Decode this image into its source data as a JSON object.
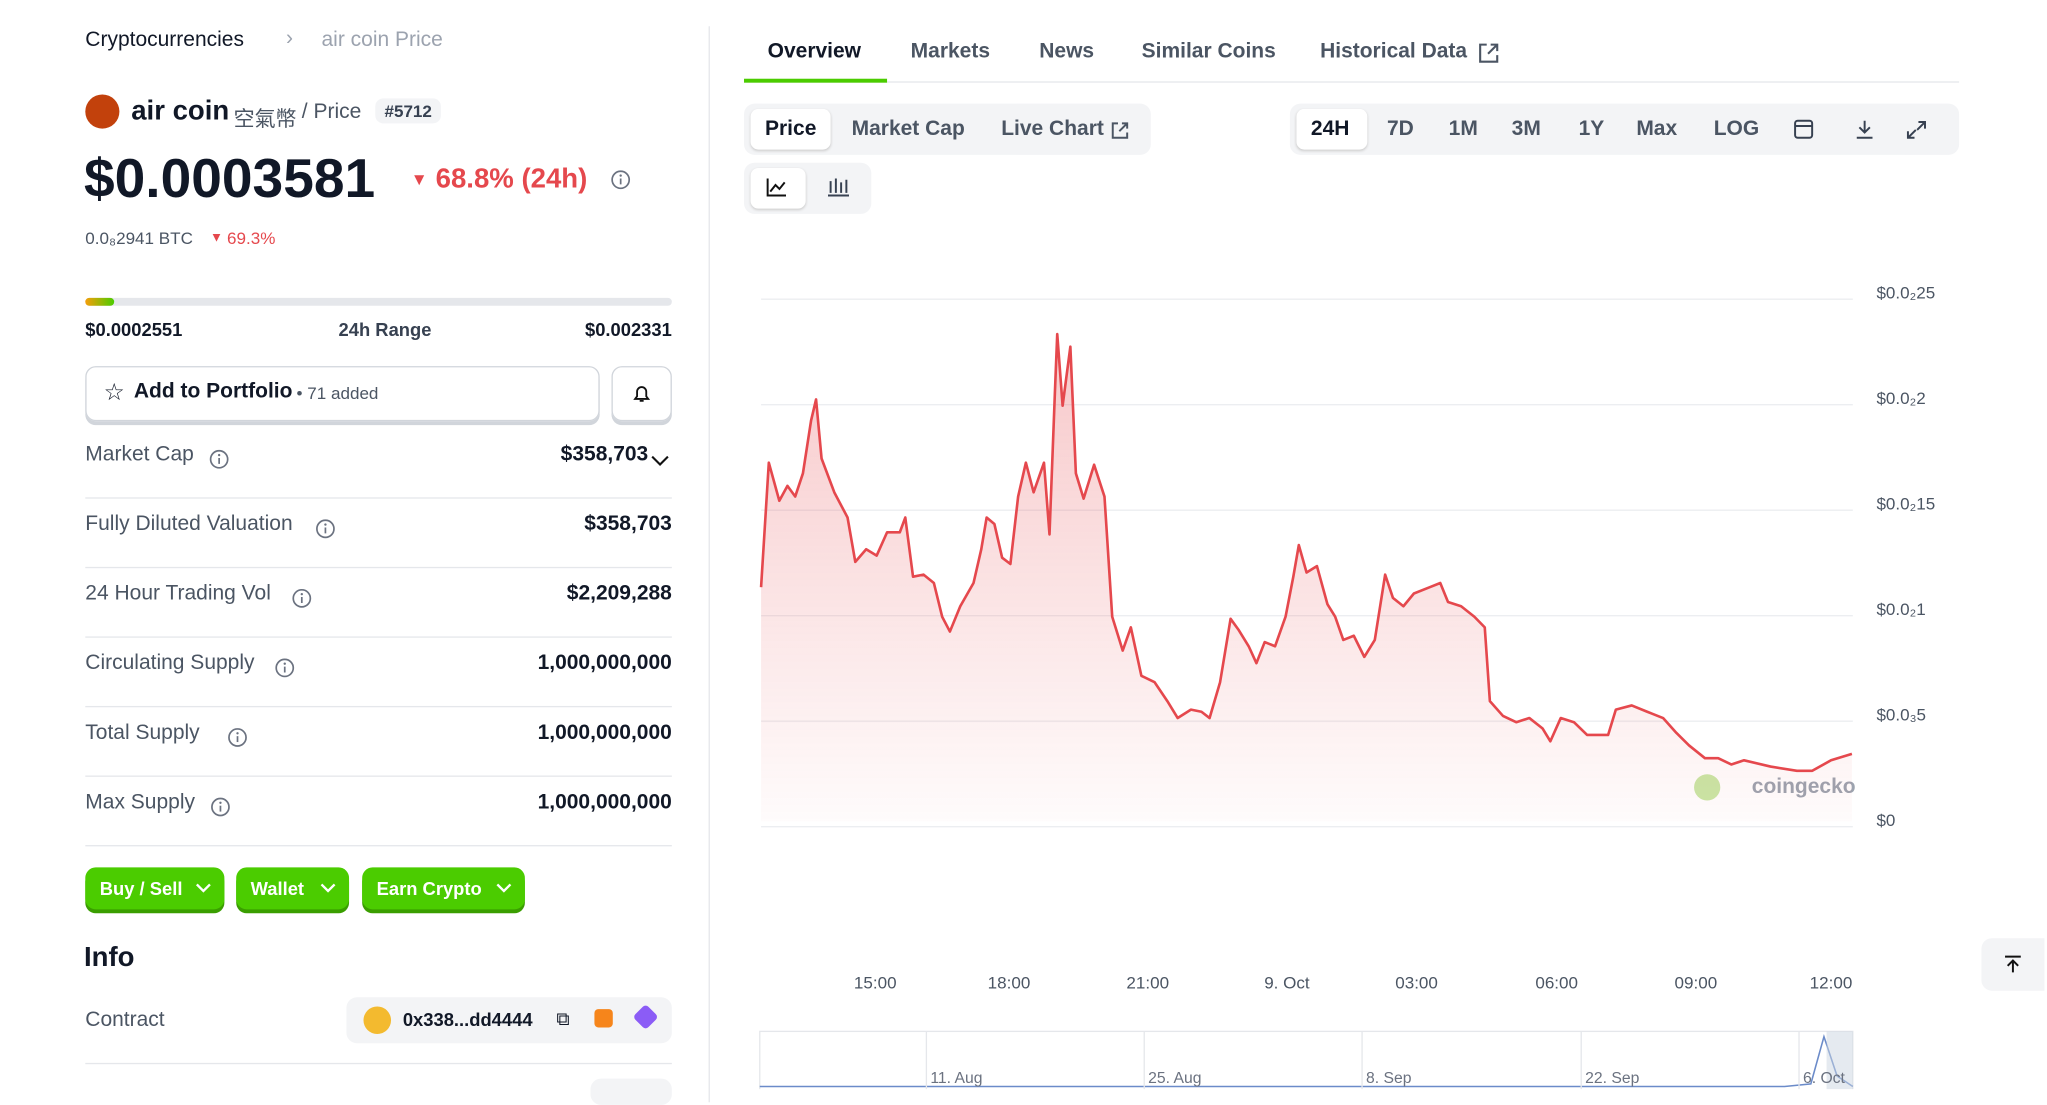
{
  "breadcrumb": [
    "Cryptocurrencies",
    "air coin Price"
  ],
  "coin": {
    "name": "air coin",
    "alt_name": "空氣幣",
    "suffix": "/ Price",
    "rank": "#5712",
    "price": "$0.0003581",
    "change_24h": "68.8% (24h)",
    "btc_price": "0.0₈2941 BTC",
    "btc_change": "69.3%"
  },
  "range": {
    "low": "$0.0002551",
    "label": "24h Range",
    "high": "$0.002331"
  },
  "portfolio": {
    "button": "Add to Portfolio",
    "added": "• 71 added"
  },
  "stats": [
    {
      "label": "Market Cap",
      "value": "$358,703"
    },
    {
      "label": "Fully Diluted Valuation",
      "value": "$358,703"
    },
    {
      "label": "24 Hour Trading Vol",
      "value": "$2,209,288"
    },
    {
      "label": "Circulating Supply",
      "value": "1,000,000,000"
    },
    {
      "label": "Total Supply",
      "value": "1,000,000,000"
    },
    {
      "label": "Max Supply",
      "value": "1,000,000,000"
    }
  ],
  "actions": [
    "Buy / Sell",
    "Wallet",
    "Earn Crypto"
  ],
  "info": {
    "title": "Info",
    "contract_label": "Contract",
    "contract": "0x338...dd4444"
  },
  "tabs": [
    "Overview",
    "Markets",
    "News",
    "Similar Coins",
    "Historical Data"
  ],
  "chart_tabs": [
    "Price",
    "Market Cap",
    "Live Chart"
  ],
  "ranges": [
    "24H",
    "7D",
    "1M",
    "3M",
    "1Y",
    "Max",
    "LOG"
  ],
  "watermark": "coingecko",
  "navigator_labels": [
    "11. Aug",
    "25. Aug",
    "8. Sep",
    "22. Sep",
    "6. Oct"
  ],
  "chart_data": {
    "type": "line",
    "color": "#e5484d",
    "x": [
      0,
      0.17,
      0.4,
      0.58,
      0.75,
      0.92,
      1.1,
      1.21,
      1.33,
      1.61,
      1.9,
      2.07,
      2.31,
      2.54,
      2.77,
      3.05,
      3.17,
      3.34,
      3.57,
      3.8,
      3.98,
      4.15,
      4.38,
      4.67,
      4.84,
      4.96,
      5.13,
      5.3,
      5.48,
      5.65,
      5.82,
      5.99,
      6.22,
      6.34,
      6.46,
      6.51,
      6.63,
      6.8,
      6.92,
      7.09,
      7.32,
      7.55,
      7.72,
      7.95,
      8.13,
      8.36,
      8.65,
      8.93,
      9.16,
      9.45,
      9.68,
      9.86,
      10.09,
      10.32,
      10.49,
      10.72,
      10.89,
      11.07,
      11.3,
      11.53,
      11.7,
      11.82,
      11.99,
      12.22,
      12.45,
      12.62,
      12.8,
      13.03,
      13.26,
      13.49,
      13.72,
      13.89,
      14.12,
      14.35,
      14.7,
      14.93,
      15.1,
      15.39,
      15.68,
      15.91,
      16.02,
      16.31,
      16.6,
      16.89,
      17.18,
      17.35,
      17.58,
      17.87,
      18.16,
      18.62,
      18.79,
      19.14,
      19.48,
      19.83,
      20.12,
      20.4,
      20.75,
      21.04,
      21.33,
      21.61,
      22.19,
      22.77,
      23.11,
      23.52,
      23.98
    ],
    "values": [
      0.00111,
      0.0017,
      0.00152,
      0.00159,
      0.00154,
      0.00165,
      0.0019,
      0.002,
      0.00172,
      0.00156,
      0.00144,
      0.00123,
      0.00129,
      0.00126,
      0.00137,
      0.00137,
      0.00144,
      0.00116,
      0.00117,
      0.00113,
      0.00097,
      0.0009,
      0.00102,
      0.00113,
      0.00129,
      0.00144,
      0.00141,
      0.00125,
      0.00122,
      0.00154,
      0.0017,
      0.00156,
      0.0017,
      0.00136,
      0.00203,
      0.00231,
      0.00197,
      0.00225,
      0.00165,
      0.00153,
      0.00169,
      0.00154,
      0.00097,
      0.00081,
      0.00092,
      0.00069,
      0.00066,
      0.00057,
      0.00049,
      0.00053,
      0.00052,
      0.00049,
      0.00066,
      0.00096,
      0.00091,
      0.00083,
      0.00075,
      0.00085,
      0.00083,
      0.00097,
      0.00116,
      0.00131,
      0.00118,
      0.00121,
      0.00103,
      0.00097,
      0.00086,
      0.00088,
      0.00078,
      0.00086,
      0.00117,
      0.00106,
      0.00102,
      0.00108,
      0.00111,
      0.00113,
      0.00104,
      0.00102,
      0.00097,
      0.00092,
      0.00057,
      0.0005,
      0.00047,
      0.00049,
      0.00044,
      0.00038,
      0.00049,
      0.00047,
      0.00041,
      0.00041,
      0.00053,
      0.00055,
      0.00052,
      0.00049,
      0.00042,
      0.00036,
      0.0003,
      0.0003,
      0.00027,
      0.00029,
      0.00026,
      0.00024,
      0.00024,
      0.00029,
      0.00032
    ],
    "xlim": [
      0,
      24
    ],
    "xticks": [
      {
        "value": 2.51,
        "label": "15:00"
      },
      {
        "value": 5.45,
        "label": "18:00"
      },
      {
        "value": 8.5,
        "label": "21:00"
      },
      {
        "value": 11.56,
        "label": "9. Oct"
      },
      {
        "value": 14.41,
        "label": "03:00"
      },
      {
        "value": 17.49,
        "label": "06:00"
      },
      {
        "value": 20.55,
        "label": "09:00"
      },
      {
        "value": 23.52,
        "label": "12:00"
      }
    ],
    "ylim": [
      0,
      0.0025
    ],
    "yticks": [
      {
        "value": 0,
        "label": "$0"
      },
      {
        "value": 0.0005,
        "label": "$0.0₃5"
      },
      {
        "value": 0.001,
        "label": "$0.0₂1"
      },
      {
        "value": 0.0015,
        "label": "$0.0₂15"
      },
      {
        "value": 0.002,
        "label": "$0.0₂2"
      },
      {
        "value": 0.0025,
        "label": "$0.0₂25"
      }
    ],
    "grid": true
  }
}
